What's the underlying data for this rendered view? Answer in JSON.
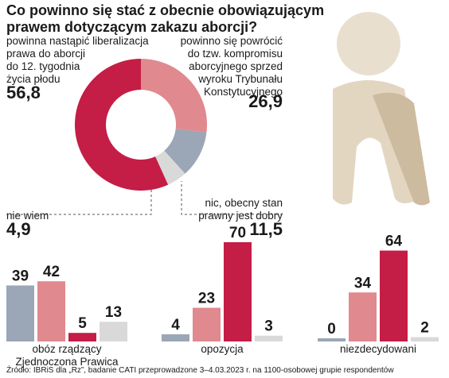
{
  "chart_data": [
    {
      "type": "donut",
      "title": [
        "Co powinno się stać z obecnie obowiązującym",
        "prawem dotyczącym zakazu aborcji?"
      ],
      "slices": [
        {
          "label": [
            "powinno się powrócić",
            "do tzw. kompromisu",
            "aborcyjnego sprzed",
            "wyroku Trybunału",
            "Konstytucyjnego"
          ],
          "value": 26.9,
          "value_label": "26,9",
          "color": "#e0898e"
        },
        {
          "label": [
            "nic, obecny stan",
            "prawny jest dobry"
          ],
          "value": 11.5,
          "value_label": "11,5",
          "color": "#9ba6b6"
        },
        {
          "label": [
            "nie wiem"
          ],
          "value": 4.9,
          "value_label": "4,9",
          "color": "#d9d9d9"
        },
        {
          "label": [
            "powinna nastąpić liberalizacja",
            "prawa do aborcji",
            "do 12. tygodnia",
            "życia płodu"
          ],
          "value": 56.8,
          "value_label": "56,8",
          "color": "#c41d46"
        }
      ]
    },
    {
      "type": "bar",
      "categories": [
        [
          "obóz rządzący",
          "Zjednoczona Prawica"
        ],
        [
          "opozycja"
        ],
        [
          "niezdecydowani"
        ]
      ],
      "series": [
        {
          "color": "#9ba6b6",
          "values": [
            39,
            4,
            0
          ]
        },
        {
          "color": "#e0898e",
          "values": [
            42,
            23,
            34
          ]
        },
        {
          "color": "#c41d46",
          "values": [
            5,
            70,
            64
          ]
        },
        {
          "color": "#d9d9d9",
          "values": [
            13,
            3,
            2
          ]
        }
      ],
      "ylim": [
        0,
        70
      ]
    }
  ],
  "source": "Źródło: IBRiS dla „Rz”, badanie CATI przeprowadzone 3–4.03.2023 r. na 1100-osobowej grupie respondentów"
}
